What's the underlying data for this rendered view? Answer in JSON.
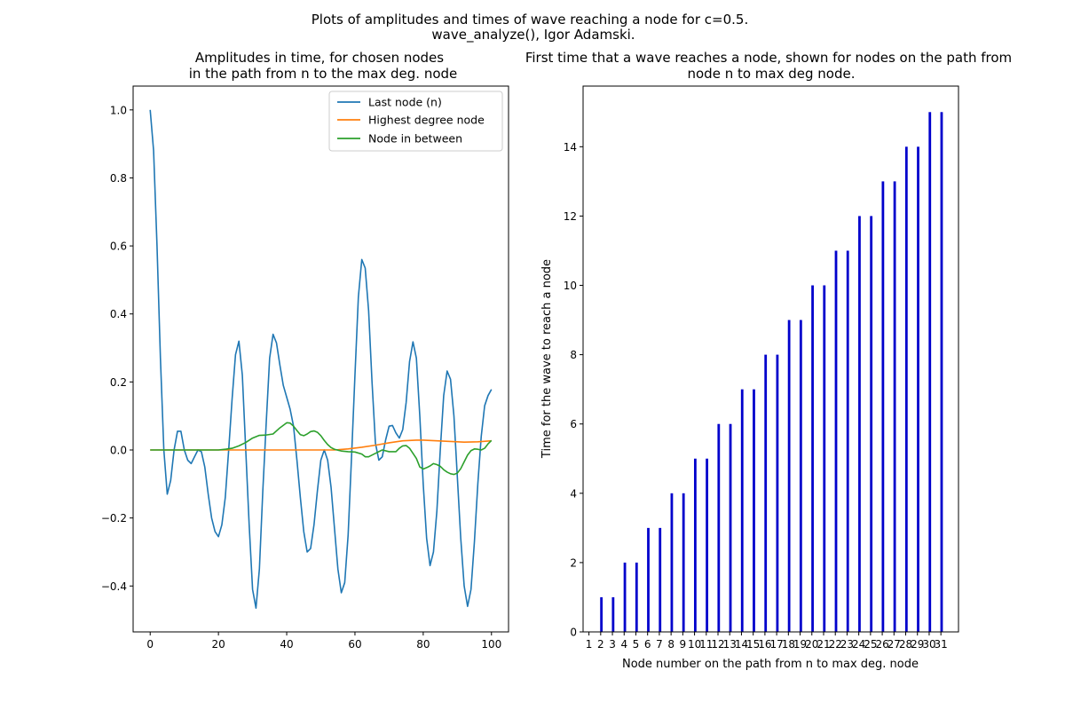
{
  "suptitle": [
    "Plots of amplitudes and times of wave reaching a node for c=0.5.",
    "wave_analyze(), Igor Adamski."
  ],
  "chart_data": [
    {
      "type": "line",
      "title": [
        "Amplitudes in time, for chosen nodes",
        "in the path from n to the max deg. node"
      ],
      "xlabel": "",
      "ylabel": "",
      "xlim": [
        -5,
        105
      ],
      "ylim": [
        -0.535,
        1.07
      ],
      "xticks": [
        0,
        20,
        40,
        60,
        80,
        100
      ],
      "yticks": [
        -0.4,
        -0.2,
        0.0,
        0.2,
        0.4,
        0.6,
        0.8,
        1.0
      ],
      "ytick_labels": [
        "−0.4",
        "−0.2",
        "0.0",
        "0.2",
        "0.4",
        "0.6",
        "0.8",
        "1.0"
      ],
      "legend_position": "top-right",
      "series": [
        {
          "name": "Last node (n)",
          "color": "#1f77b4",
          "points": [
            [
              0,
              1.0
            ],
            [
              1,
              0.88
            ],
            [
              2,
              0.6
            ],
            [
              3,
              0.27
            ],
            [
              4,
              0.0
            ],
            [
              5,
              -0.13
            ],
            [
              6,
              -0.09
            ],
            [
              7,
              0.0
            ],
            [
              8,
              0.055
            ],
            [
              9,
              0.055
            ],
            [
              10,
              0.0
            ],
            [
              11,
              -0.03
            ],
            [
              12,
              -0.04
            ],
            [
              13,
              -0.02
            ],
            [
              14,
              0.0
            ],
            [
              15,
              -0.005
            ],
            [
              16,
              -0.05
            ],
            [
              17,
              -0.13
            ],
            [
              18,
              -0.2
            ],
            [
              19,
              -0.24
            ],
            [
              20,
              -0.255
            ],
            [
              21,
              -0.22
            ],
            [
              22,
              -0.14
            ],
            [
              23,
              0.0
            ],
            [
              24,
              0.15
            ],
            [
              25,
              0.28
            ],
            [
              26,
              0.32
            ],
            [
              27,
              0.22
            ],
            [
              28,
              0.0
            ],
            [
              29,
              -0.22
            ],
            [
              30,
              -0.41
            ],
            [
              31,
              -0.465
            ],
            [
              32,
              -0.35
            ],
            [
              33,
              -0.12
            ],
            [
              34,
              0.08
            ],
            [
              35,
              0.27
            ],
            [
              36,
              0.34
            ],
            [
              37,
              0.315
            ],
            [
              38,
              0.25
            ],
            [
              39,
              0.19
            ],
            [
              40,
              0.155
            ],
            [
              41,
              0.12
            ],
            [
              42,
              0.07
            ],
            [
              43,
              -0.03
            ],
            [
              44,
              -0.14
            ],
            [
              45,
              -0.24
            ],
            [
              46,
              -0.3
            ],
            [
              47,
              -0.29
            ],
            [
              48,
              -0.22
            ],
            [
              49,
              -0.12
            ],
            [
              50,
              -0.03
            ],
            [
              51,
              0.0
            ],
            [
              52,
              -0.03
            ],
            [
              53,
              -0.11
            ],
            [
              54,
              -0.23
            ],
            [
              55,
              -0.35
            ],
            [
              56,
              -0.42
            ],
            [
              57,
              -0.39
            ],
            [
              58,
              -0.25
            ],
            [
              59,
              -0.02
            ],
            [
              60,
              0.22
            ],
            [
              61,
              0.45
            ],
            [
              62,
              0.56
            ],
            [
              63,
              0.535
            ],
            [
              64,
              0.41
            ],
            [
              65,
              0.2
            ],
            [
              66,
              0.02
            ],
            [
              67,
              -0.03
            ],
            [
              68,
              -0.02
            ],
            [
              69,
              0.03
            ],
            [
              70,
              0.07
            ],
            [
              71,
              0.072
            ],
            [
              72,
              0.05
            ],
            [
              73,
              0.035
            ],
            [
              74,
              0.06
            ],
            [
              75,
              0.14
            ],
            [
              76,
              0.26
            ],
            [
              77,
              0.318
            ],
            [
              78,
              0.27
            ],
            [
              79,
              0.1
            ],
            [
              80,
              -0.1
            ],
            [
              81,
              -0.26
            ],
            [
              82,
              -0.34
            ],
            [
              83,
              -0.3
            ],
            [
              84,
              -0.18
            ],
            [
              85,
              0.0
            ],
            [
              86,
              0.16
            ],
            [
              87,
              0.232
            ],
            [
              88,
              0.208
            ],
            [
              89,
              0.1
            ],
            [
              90,
              -0.08
            ],
            [
              91,
              -0.26
            ],
            [
              92,
              -0.4
            ],
            [
              93,
              -0.46
            ],
            [
              94,
              -0.41
            ],
            [
              95,
              -0.27
            ],
            [
              96,
              -0.1
            ],
            [
              97,
              0.04
            ],
            [
              98,
              0.13
            ],
            [
              99,
              0.16
            ],
            [
              100,
              0.178
            ]
          ]
        },
        {
          "name": "Highest degree node",
          "color": "#ff7f0e",
          "points": [
            [
              0,
              0.0
            ],
            [
              54,
              0.0
            ],
            [
              58,
              0.003
            ],
            [
              62,
              0.008
            ],
            [
              66,
              0.014
            ],
            [
              70,
              0.021
            ],
            [
              74,
              0.027
            ],
            [
              78,
              0.029
            ],
            [
              80,
              0.029
            ],
            [
              84,
              0.027
            ],
            [
              88,
              0.025
            ],
            [
              92,
              0.023
            ],
            [
              96,
              0.024
            ],
            [
              100,
              0.027
            ]
          ]
        },
        {
          "name": "Node in between",
          "color": "#2ca02c",
          "points": [
            [
              0,
              0.0
            ],
            [
              20,
              0.0
            ],
            [
              22,
              0.002
            ],
            [
              24,
              0.005
            ],
            [
              26,
              0.012
            ],
            [
              28,
              0.022
            ],
            [
              30,
              0.035
            ],
            [
              32,
              0.043
            ],
            [
              34,
              0.044
            ],
            [
              36,
              0.047
            ],
            [
              38,
              0.065
            ],
            [
              40,
              0.08
            ],
            [
              41,
              0.079
            ],
            [
              42,
              0.07
            ],
            [
              43,
              0.057
            ],
            [
              44,
              0.045
            ],
            [
              45,
              0.042
            ],
            [
              46,
              0.047
            ],
            [
              47,
              0.054
            ],
            [
              48,
              0.056
            ],
            [
              49,
              0.052
            ],
            [
              50,
              0.042
            ],
            [
              51,
              0.028
            ],
            [
              52,
              0.016
            ],
            [
              53,
              0.007
            ],
            [
              54,
              0.002
            ],
            [
              56,
              -0.003
            ],
            [
              58,
              -0.005
            ],
            [
              60,
              -0.006
            ],
            [
              62,
              -0.012
            ],
            [
              63,
              -0.02
            ],
            [
              64,
              -0.02
            ],
            [
              66,
              -0.01
            ],
            [
              68,
              0.0
            ],
            [
              70,
              -0.005
            ],
            [
              72,
              -0.005
            ],
            [
              73,
              0.005
            ],
            [
              74,
              0.012
            ],
            [
              75,
              0.013
            ],
            [
              76,
              0.005
            ],
            [
              78,
              -0.025
            ],
            [
              79,
              -0.05
            ],
            [
              80,
              -0.056
            ],
            [
              81,
              -0.052
            ],
            [
              82,
              -0.047
            ],
            [
              83,
              -0.04
            ],
            [
              84,
              -0.043
            ],
            [
              85,
              -0.048
            ],
            [
              86,
              -0.058
            ],
            [
              87,
              -0.065
            ],
            [
              88,
              -0.07
            ],
            [
              89,
              -0.072
            ],
            [
              90,
              -0.068
            ],
            [
              91,
              -0.055
            ],
            [
              92,
              -0.035
            ],
            [
              93,
              -0.015
            ],
            [
              94,
              -0.002
            ],
            [
              95,
              0.003
            ],
            [
              96,
              0.002
            ],
            [
              97,
              0.0
            ],
            [
              98,
              0.005
            ],
            [
              99,
              0.018
            ],
            [
              100,
              0.028
            ]
          ]
        }
      ]
    },
    {
      "type": "bar",
      "title": [
        "First time that a wave reaches a node, shown for nodes on the path from",
        "node n to max deg node."
      ],
      "xlabel": "Node number on the path from n to max deg. node",
      "ylabel": "Time for the wave to reach a node",
      "xlim": [
        -0.5,
        31.5
      ],
      "ylim": [
        0,
        15.75
      ],
      "yticks": [
        0,
        2,
        4,
        6,
        8,
        10,
        12,
        14
      ],
      "categories": [
        "1",
        "2",
        "3",
        "4",
        "5",
        "6",
        "7",
        "8",
        "9",
        "10",
        "11",
        "12",
        "13",
        "14",
        "15",
        "16",
        "17",
        "18",
        "19",
        "20",
        "21",
        "22",
        "23",
        "24",
        "25",
        "26",
        "27",
        "28",
        "29",
        "30",
        "31"
      ],
      "values": [
        0,
        1,
        1,
        2,
        2,
        3,
        3,
        4,
        4,
        5,
        5,
        6,
        6,
        7,
        7,
        8,
        8,
        9,
        9,
        10,
        10,
        11,
        11,
        12,
        12,
        13,
        13,
        14,
        14,
        15,
        15
      ],
      "bar_color": "#0000cc"
    }
  ]
}
